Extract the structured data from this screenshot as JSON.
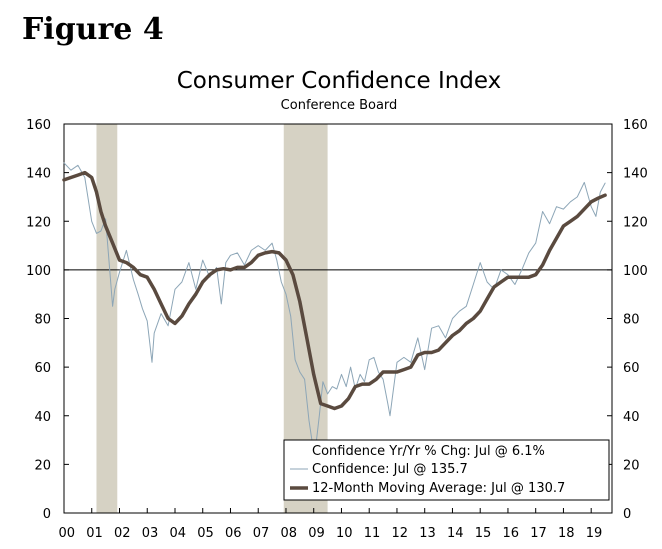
{
  "figure_label": "Figure 4",
  "chart_data": {
    "type": "line",
    "title": "Consumer Confidence Index",
    "subtitle": "Conference Board",
    "xlabel": "",
    "ylabel": "",
    "xlim": [
      2000.0,
      2019.75
    ],
    "ylim": [
      0,
      160
    ],
    "x_tick_labels": [
      "00",
      "01",
      "02",
      "03",
      "04",
      "05",
      "06",
      "07",
      "08",
      "09",
      "10",
      "11",
      "12",
      "13",
      "14",
      "15",
      "16",
      "17",
      "18",
      "19"
    ],
    "y_ticks": [
      0,
      20,
      40,
      60,
      80,
      100,
      120,
      140,
      160
    ],
    "reference_line": 100,
    "recessions": [
      [
        2001.17,
        2001.92
      ],
      [
        2007.92,
        2009.5
      ]
    ],
    "recession_color": "#d6d2c4",
    "legend": {
      "placement": "bottom-right",
      "entries": [
        "Confidence Yr/Yr % Chg: Jul @ 6.1%",
        "Confidence: Jul @ 135.7",
        "12-Month Moving Average: Jul @ 130.7"
      ]
    },
    "series": [
      {
        "name": "Confidence: Jul @ 135.7",
        "color": "#8da6b7",
        "x": [
          2000.0,
          2000.25,
          2000.5,
          2000.75,
          2001.0,
          2001.17,
          2001.33,
          2001.5,
          2001.67,
          2001.75,
          2001.83,
          2002.0,
          2002.25,
          2002.5,
          2002.67,
          2002.83,
          2003.0,
          2003.17,
          2003.25,
          2003.5,
          2003.75,
          2004.0,
          2004.25,
          2004.5,
          2004.75,
          2005.0,
          2005.25,
          2005.5,
          2005.67,
          2005.83,
          2006.0,
          2006.25,
          2006.5,
          2006.75,
          2007.0,
          2007.25,
          2007.5,
          2007.67,
          2007.83,
          2008.0,
          2008.17,
          2008.33,
          2008.5,
          2008.67,
          2008.83,
          2009.0,
          2009.1,
          2009.2,
          2009.33,
          2009.5,
          2009.67,
          2009.83,
          2010.0,
          2010.17,
          2010.33,
          2010.5,
          2010.67,
          2010.83,
          2011.0,
          2011.17,
          2011.33,
          2011.5,
          2011.67,
          2011.75,
          2011.83,
          2012.0,
          2012.25,
          2012.5,
          2012.75,
          2013.0,
          2013.25,
          2013.5,
          2013.75,
          2014.0,
          2014.25,
          2014.5,
          2014.75,
          2015.0,
          2015.25,
          2015.5,
          2015.75,
          2016.0,
          2016.25,
          2016.5,
          2016.75,
          2017.0,
          2017.25,
          2017.5,
          2017.75,
          2018.0,
          2018.25,
          2018.5,
          2018.75,
          2019.0,
          2019.17,
          2019.33,
          2019.5
        ],
        "values": [
          144,
          141,
          143,
          138,
          120,
          115,
          116,
          121,
          97,
          85,
          92,
          99,
          108,
          96,
          90,
          84,
          79,
          62,
          74,
          82,
          77,
          92,
          95,
          103,
          92,
          104,
          97,
          101,
          86,
          103,
          106,
          107,
          102,
          108,
          110,
          108,
          111,
          104,
          95,
          90,
          81,
          63,
          58,
          55,
          38,
          25,
          30,
          40,
          54,
          49,
          52,
          51,
          57,
          52,
          60,
          51,
          57,
          54,
          63,
          64,
          58,
          55,
          45,
          40,
          47,
          62,
          64,
          62,
          72,
          59,
          76,
          77,
          72,
          80,
          83,
          85,
          94,
          103,
          95,
          92,
          100,
          98,
          94,
          100,
          107,
          111,
          124,
          119,
          126,
          125,
          128,
          130,
          136,
          126,
          122,
          132,
          135.7
        ]
      },
      {
        "name": "12-Month Moving Average: Jul @ 130.7",
        "color": "#5a4a3f",
        "x": [
          2000.0,
          2000.25,
          2000.5,
          2000.75,
          2001.0,
          2001.17,
          2001.33,
          2001.5,
          2001.75,
          2002.0,
          2002.25,
          2002.5,
          2002.75,
          2003.0,
          2003.25,
          2003.5,
          2003.75,
          2004.0,
          2004.25,
          2004.5,
          2004.75,
          2005.0,
          2005.25,
          2005.5,
          2005.75,
          2006.0,
          2006.25,
          2006.5,
          2006.75,
          2007.0,
          2007.25,
          2007.5,
          2007.75,
          2008.0,
          2008.25,
          2008.5,
          2008.75,
          2009.0,
          2009.25,
          2009.5,
          2009.75,
          2010.0,
          2010.25,
          2010.5,
          2010.75,
          2011.0,
          2011.25,
          2011.5,
          2011.75,
          2012.0,
          2012.25,
          2012.5,
          2012.75,
          2013.0,
          2013.25,
          2013.5,
          2013.75,
          2014.0,
          2014.25,
          2014.5,
          2014.75,
          2015.0,
          2015.25,
          2015.5,
          2015.75,
          2016.0,
          2016.25,
          2016.5,
          2016.75,
          2017.0,
          2017.25,
          2017.5,
          2017.75,
          2018.0,
          2018.25,
          2018.5,
          2018.75,
          2019.0,
          2019.25,
          2019.5
        ],
        "values": [
          137,
          138,
          139,
          140,
          138,
          132,
          124,
          118,
          111,
          104,
          103,
          101,
          98,
          97,
          92,
          86,
          80,
          78,
          81,
          86,
          90,
          95,
          98,
          100,
          100.5,
          100,
          101,
          101,
          103,
          106,
          107,
          107.5,
          107,
          104,
          98,
          87,
          72,
          57,
          45,
          44,
          43,
          44,
          47,
          52,
          53,
          53,
          55,
          58,
          58,
          58,
          59,
          60,
          65,
          66,
          66,
          67,
          70,
          73,
          75,
          78,
          80,
          83,
          88,
          93,
          95,
          97,
          97,
          97,
          97,
          98,
          102,
          108,
          113,
          118,
          120,
          122,
          125,
          128,
          129.5,
          130.7
        ]
      }
    ]
  }
}
